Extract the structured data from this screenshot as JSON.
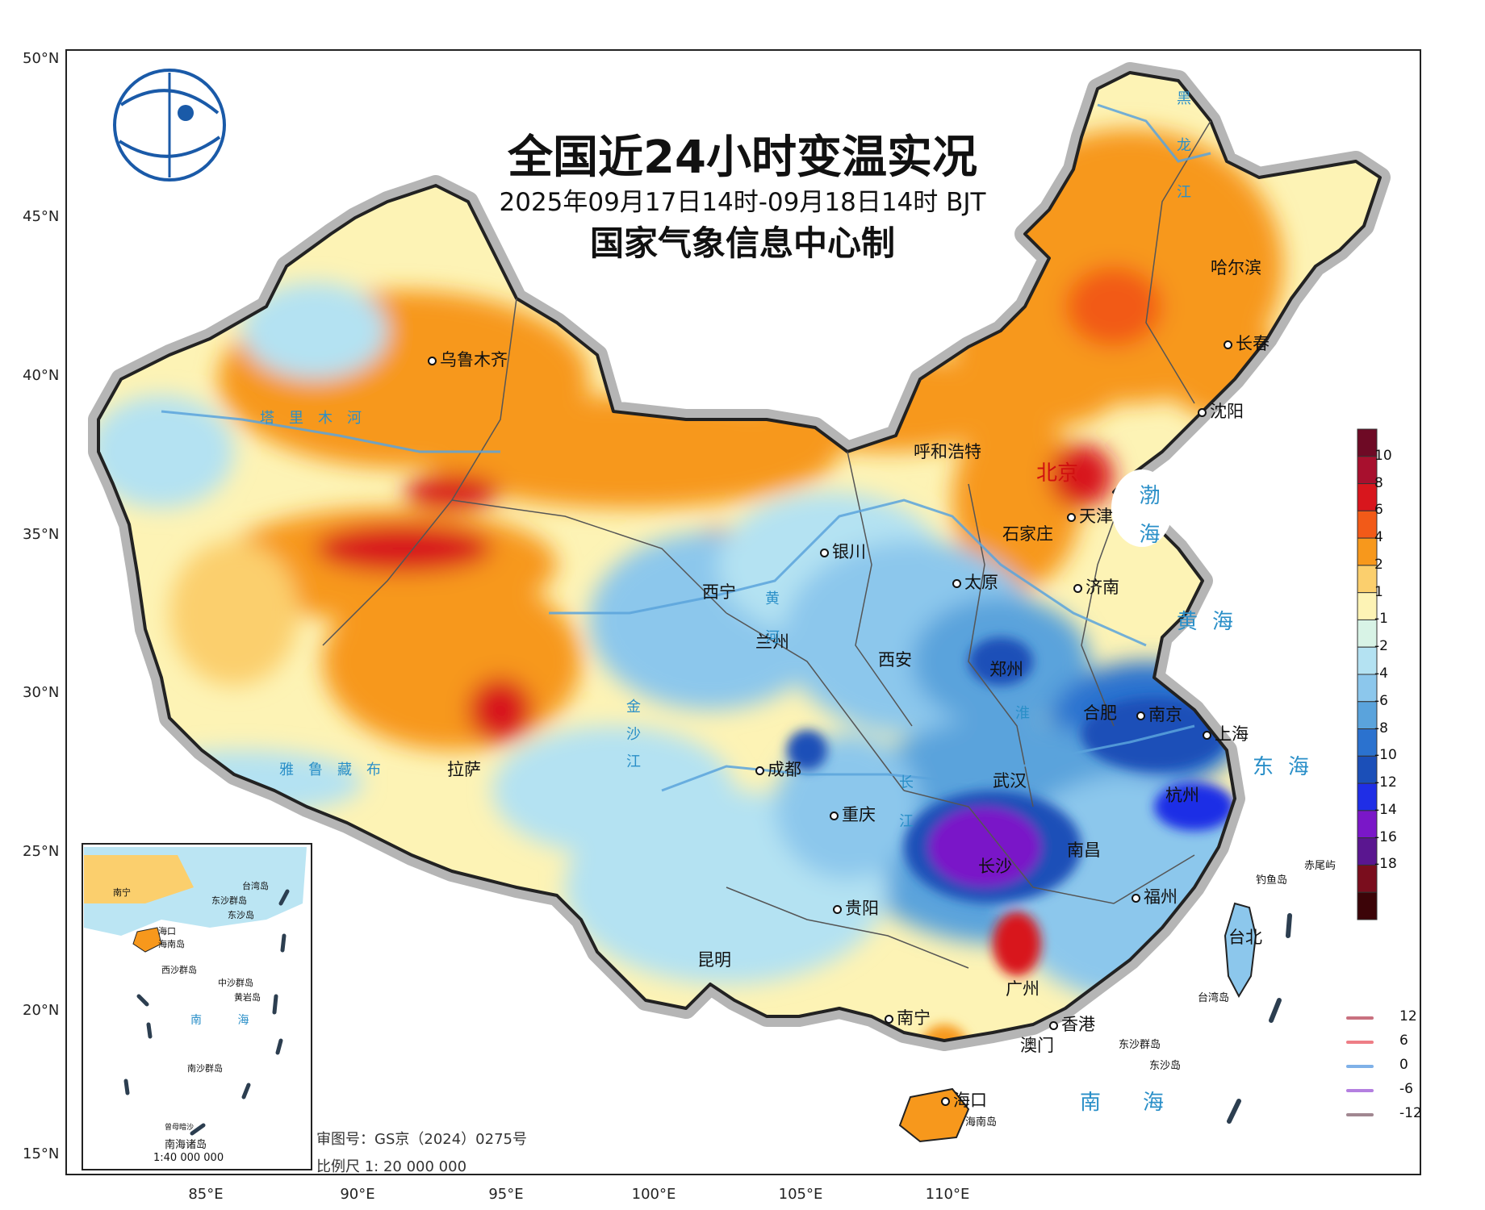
{
  "title": "全国近24小时变温实况",
  "subtitle": "2025年09月17日14时-09月18日14时 BJT",
  "producer": "国家气象信息中心制",
  "lat_labels": [
    "50°N",
    "45°N",
    "40°N",
    "35°N",
    "30°N",
    "25°N",
    "20°N",
    "15°N"
  ],
  "lon_labels": [
    "85°E",
    "90°E",
    "95°E",
    "100°E",
    "105°E",
    "110°E"
  ],
  "colorbar": {
    "labels": [
      "10",
      "8",
      "6",
      "4",
      "2",
      "1",
      "-1",
      "-2",
      "-4",
      "-6",
      "-8",
      "-10",
      "-12",
      "-14",
      "-16",
      "-18"
    ],
    "colors": [
      "#6e0a25",
      "#a8102e",
      "#d8161d",
      "#f25a18",
      "#f7981c",
      "#fbcf6d",
      "#fdf3b5",
      "#d8f3e6",
      "#b4e2f2",
      "#8cc7ec",
      "#5aa3dc",
      "#2b72cf",
      "#1b4fb8",
      "#1f2ee6",
      "#7a17c8",
      "#5a1690",
      "#7a0d1d",
      "#3c0408"
    ]
  },
  "isolines": [
    {
      "label": "12",
      "color": "#c9717f"
    },
    {
      "label": "6",
      "color": "#ee7e86"
    },
    {
      "label": "0",
      "color": "#7fb1e8"
    },
    {
      "label": "-6",
      "color": "#b47fe0"
    },
    {
      "label": "-12",
      "color": "#a18791"
    }
  ],
  "cities": {
    "urumqi": "乌鲁木齐",
    "hohhot": "呼和浩特",
    "beijing": "北京",
    "tianjin": "天津",
    "shijiazhuang": "石家庄",
    "taiyuan": "太原",
    "jinan": "济南",
    "yinchuan": "银川",
    "xining": "西宁",
    "lanzhou": "兰州",
    "xian": "西安",
    "zhengzhou": "郑州",
    "hefei": "合肥",
    "nanjing": "南京",
    "shanghai": "上海",
    "hangzhou": "杭州",
    "wuhan": "武汉",
    "changsha": "长沙",
    "nanchang": "南昌",
    "fuzhou": "福州",
    "taipei": "台北",
    "chengdu": "成都",
    "chongqing": "重庆",
    "guiyang": "贵阳",
    "kunming": "昆明",
    "lhasa": "拉萨",
    "nanning": "南宁",
    "guangzhou": "广州",
    "hongkong": "香港",
    "macau": "澳门",
    "haikou": "海口",
    "harbin": "哈尔滨",
    "changchun": "长春",
    "shenyang": "沈阳"
  },
  "islands": {
    "hainan": "海南岛",
    "diaoyu": "钓鱼岛",
    "chiwei": "赤尾屿",
    "taiwan_strait": "台湾岛",
    "dongsha": "东沙群岛",
    "dongsha2": "东沙岛"
  },
  "seas": {
    "bohai": "渤海",
    "yellow": "黄海",
    "east": "东海",
    "south": "南海"
  },
  "rivers": {
    "tarim": "塔里木河",
    "heilong": "黑龙江",
    "yellow_river": "黄河",
    "yangtze": "长江",
    "huai": "淮",
    "jinsha": "金沙江",
    "yalu": "雅鲁藏布"
  },
  "inset": {
    "title": "南海诸岛",
    "scale": "1:40 000 000",
    "labels": {
      "nanning": "南宁",
      "haikou": "海口",
      "hainan": "海南岛",
      "dongsha": "东沙群岛",
      "dongsha2": "东沙岛",
      "taiwan": "台湾岛",
      "xisha": "西沙群岛",
      "zhongsha": "中沙群岛",
      "huangyan": "黄岩岛",
      "nanhai": "南 海",
      "nansha": "南沙群岛",
      "zengmu": "曾母暗沙"
    }
  },
  "notes": {
    "approval": "审图号：GS京（2024）0275号",
    "scale": "比例尺 1: 20 000 000"
  }
}
